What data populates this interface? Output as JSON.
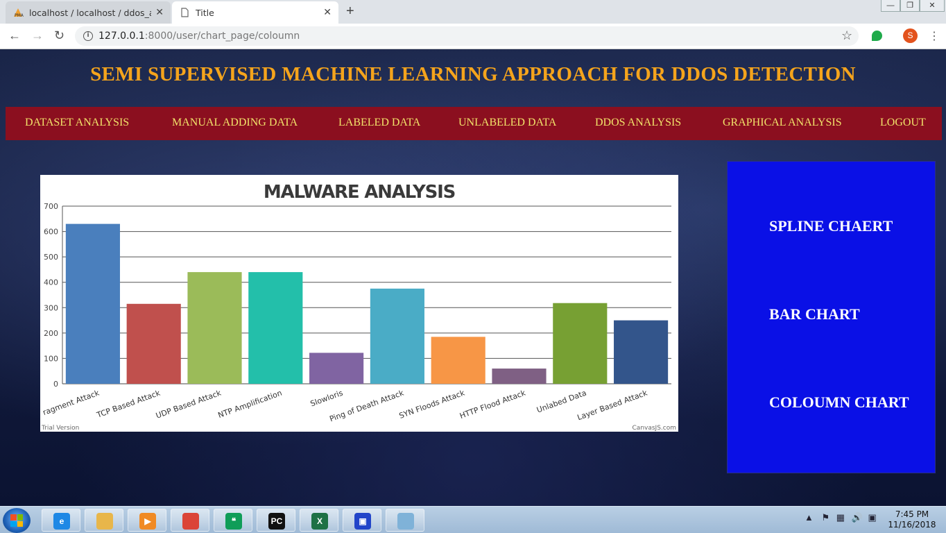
{
  "browser": {
    "tabs": [
      {
        "title": "localhost / localhost / ddos_attac",
        "favicon": "phpmyadmin-icon",
        "active": false
      },
      {
        "title": "Title",
        "favicon": "document-icon",
        "active": true
      }
    ],
    "url_host": "127.0.0.1",
    "url_rest": ":8000/user/chart_page/coloumn",
    "profile_initial": "S"
  },
  "page": {
    "title": "SEMI SUPERVISED MACHINE LEARNING APPROACH FOR DDOS DETECTION",
    "nav": [
      "DATASET ANALYSIS",
      "MANUAL ADDING DATA",
      "LABELED DATA",
      "UNLABELED DATA",
      "DDOS ANALYSIS",
      "GRAPHICAL ANALYSIS",
      "LOGOUT"
    ],
    "side_links": [
      "SPLINE CHAERT",
      "BAR CHART",
      "COLOUMN CHART"
    ],
    "colors": {
      "title": "#f5a41c",
      "nav_bg": "#8b0f1f",
      "nav_text": "#f2e36a",
      "side_bg": "#0a10e6"
    }
  },
  "chart_data": {
    "type": "bar",
    "title": "MALWARE ANALYSIS",
    "categories": [
      "ragment Attack",
      "TCP Based Attack",
      "UDP Based Attack",
      "NTP Amplification",
      "Slowloris",
      "Ping of Death Attack",
      "SYN Floods Attack",
      "HTTP Flood Attack",
      "Unlabed Data",
      "Layer Based Attack"
    ],
    "values": [
      630,
      315,
      440,
      440,
      122,
      375,
      185,
      60,
      318,
      250
    ],
    "colors": [
      "#4a7fbd",
      "#c0504d",
      "#9bbb59",
      "#23bfaa",
      "#8064a2",
      "#4aacc6",
      "#f79646",
      "#7f6084",
      "#77a033",
      "#33558b"
    ],
    "ylim": [
      0,
      700
    ],
    "yticks": [
      0,
      100,
      200,
      300,
      400,
      500,
      600,
      700
    ],
    "grid": true,
    "footer_left": "Trial Version",
    "footer_right": "CanvasJS.com"
  },
  "taskbar": {
    "apps": [
      {
        "name": "internet-explorer-icon",
        "label": "e",
        "color": "#1e88e5"
      },
      {
        "name": "file-explorer-icon",
        "label": "",
        "color": "#e8b64a"
      },
      {
        "name": "media-player-icon",
        "label": "▶",
        "color": "#f08a24"
      },
      {
        "name": "chrome-icon",
        "label": "",
        "color": "#db4437"
      },
      {
        "name": "hangouts-icon",
        "label": "❝",
        "color": "#0f9d58"
      },
      {
        "name": "pycharm-icon",
        "label": "PC",
        "color": "#111111"
      },
      {
        "name": "excel-icon",
        "label": "X",
        "color": "#1e7145"
      },
      {
        "name": "remote-app-icon",
        "label": "▣",
        "color": "#2245c9"
      },
      {
        "name": "notepad-icon",
        "label": "",
        "color": "#7fb2d8"
      }
    ],
    "time": "7:45 PM",
    "date": "11/16/2018"
  }
}
